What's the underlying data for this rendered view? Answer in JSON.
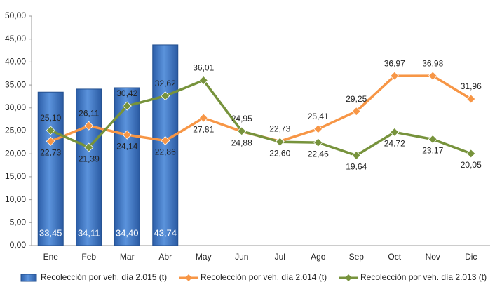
{
  "chart_data": {
    "type": "bar-line",
    "categories": [
      "Ene",
      "Feb",
      "Mar",
      "Abr",
      "May",
      "Jun",
      "Jul",
      "Ago",
      "Sep",
      "Oct",
      "Nov",
      "Dic"
    ],
    "ylim": [
      0,
      50
    ],
    "yticks": [
      {
        "value": 0,
        "label": "0,00"
      },
      {
        "value": 5,
        "label": "5,00"
      },
      {
        "value": 10,
        "label": "10,00"
      },
      {
        "value": 15,
        "label": "15,00"
      },
      {
        "value": 20,
        "label": "20,00"
      },
      {
        "value": 25,
        "label": "25,00"
      },
      {
        "value": 30,
        "label": "30,00"
      },
      {
        "value": 35,
        "label": "35,00"
      },
      {
        "value": 40,
        "label": "40,00"
      },
      {
        "value": 45,
        "label": "45,00"
      },
      {
        "value": 50,
        "label": "50,00"
      }
    ],
    "grid": false,
    "legend": "bottom",
    "series": [
      {
        "name": "Recolección por veh. día 2.015 (t)",
        "type": "bar",
        "color": "#3a72c0",
        "values": [
          33.45,
          34.11,
          34.4,
          43.74,
          null,
          null,
          null,
          null,
          null,
          null,
          null,
          null
        ],
        "value_labels": [
          "33,45",
          "34,11",
          "34,40",
          "43,74",
          null,
          null,
          null,
          null,
          null,
          null,
          null,
          null
        ]
      },
      {
        "name": "Recolección por veh. día 2.014 (t)",
        "type": "line",
        "color": "#f79646",
        "values": [
          22.73,
          26.11,
          24.14,
          22.86,
          27.81,
          24.88,
          22.73,
          25.41,
          29.25,
          36.97,
          36.98,
          31.96
        ],
        "value_labels": [
          "22,73",
          "26,11",
          "24,14",
          "22,86",
          "27,81",
          "24,88",
          "22,73",
          "25,41",
          "29,25",
          "36,97",
          "36,98",
          "31,96"
        ]
      },
      {
        "name": "Recolección por veh. día 2.013 (t)",
        "type": "line",
        "color": "#77933c",
        "values": [
          25.1,
          21.39,
          30.42,
          32.62,
          36.01,
          24.95,
          22.6,
          22.46,
          19.64,
          24.72,
          23.17,
          20.05
        ],
        "value_labels": [
          "25,10",
          "21,39",
          "30,42",
          "32,62",
          "36,01",
          "24,95",
          "22,60",
          "22,46",
          "19,64",
          "24,72",
          "23,17",
          "20,05"
        ]
      }
    ]
  }
}
